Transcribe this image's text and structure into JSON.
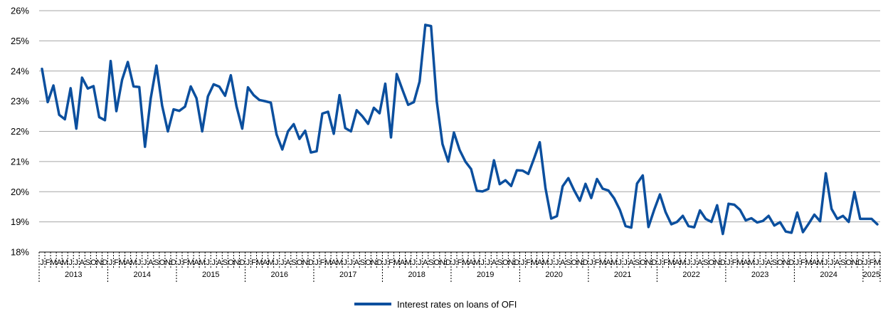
{
  "chart_data": {
    "type": "line",
    "title": "",
    "xlabel": "",
    "ylabel": "",
    "ylim": [
      18,
      26
    ],
    "y_ticks": [
      "18%",
      "19%",
      "20%",
      "21%",
      "22%",
      "23%",
      "24%",
      "25%",
      "26%"
    ],
    "grid": "horizontal",
    "legend_position": "bottom",
    "series_color": "#0b4f9e",
    "start": "2013-01",
    "month_labels": [
      "J",
      "F",
      "M",
      "A",
      "M",
      "J",
      "J",
      "A",
      "S",
      "O",
      "N",
      "D"
    ],
    "years": [
      "2013",
      "2014",
      "2015",
      "2016",
      "2017",
      "2018",
      "2019",
      "2020",
      "2021",
      "2022",
      "2023",
      "2024",
      "2025"
    ],
    "series": [
      {
        "name": "Interest rates on loans of OFI",
        "values": [
          24.07,
          22.97,
          23.52,
          22.55,
          22.4,
          23.43,
          22.09,
          23.78,
          23.42,
          23.5,
          22.47,
          22.37,
          24.33,
          22.67,
          23.71,
          24.3,
          23.49,
          23.47,
          21.49,
          23.09,
          24.18,
          22.85,
          22.0,
          22.73,
          22.68,
          22.82,
          23.49,
          23.1,
          22.0,
          23.16,
          23.56,
          23.48,
          23.18,
          23.86,
          22.83,
          22.09,
          23.46,
          23.2,
          23.04,
          23.0,
          22.95,
          21.9,
          21.4,
          22.0,
          22.24,
          21.75,
          22.02,
          21.3,
          21.34,
          22.59,
          22.65,
          21.92,
          23.2,
          22.11,
          22.0,
          22.7,
          22.5,
          22.25,
          22.78,
          22.6,
          23.58,
          21.8,
          23.9,
          23.38,
          22.88,
          22.97,
          23.65,
          25.53,
          25.49,
          22.99,
          21.58,
          21.0,
          21.96,
          21.38,
          21.0,
          20.75,
          20.03,
          20.01,
          20.09,
          21.04,
          20.25,
          20.38,
          20.19,
          20.71,
          20.7,
          20.59,
          21.1,
          21.64,
          20.12,
          19.11,
          19.19,
          20.18,
          20.45,
          20.05,
          19.7,
          20.26,
          19.79,
          20.42,
          20.1,
          20.04,
          19.78,
          19.4,
          18.86,
          18.81,
          20.27,
          20.54,
          18.83,
          19.4,
          19.91,
          19.32,
          18.92,
          19.0,
          19.2,
          18.86,
          18.82,
          19.38,
          19.1,
          19.0,
          19.55,
          18.6,
          19.6,
          19.57,
          19.4,
          19.05,
          19.12,
          18.98,
          19.03,
          19.2,
          18.88,
          18.99,
          18.68,
          18.64,
          19.31,
          18.66,
          18.94,
          19.24,
          19.02,
          20.61,
          19.43,
          19.1,
          19.2,
          19.0,
          19.99,
          19.1,
          19.1,
          19.1,
          18.92
        ]
      }
    ]
  }
}
